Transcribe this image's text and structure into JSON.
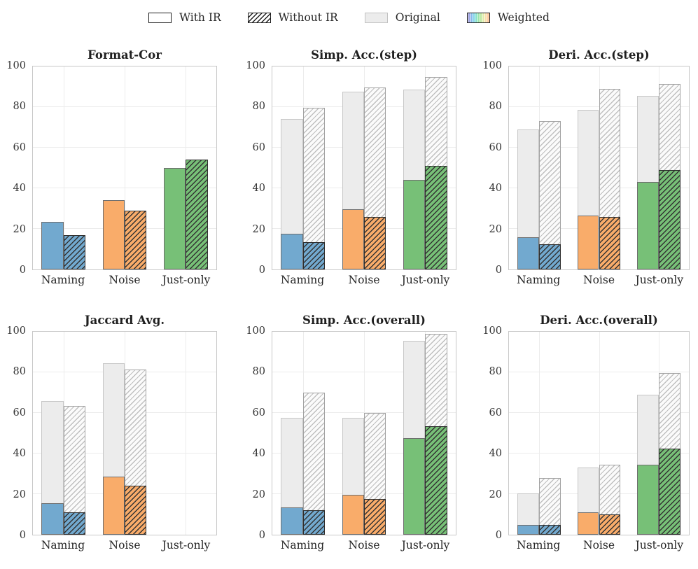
{
  "legend": {
    "items": [
      {
        "key": "with_ir",
        "label": "With IR",
        "swatch": "with-ir-swatch"
      },
      {
        "key": "without_ir",
        "label": "Without IR",
        "swatch": "without-ir-hatched-swatch"
      },
      {
        "key": "original",
        "label": "Original",
        "swatch": "original-gray-swatch"
      },
      {
        "key": "weighted",
        "label": "Weighted",
        "swatch": "weighted-rainbow-swatch"
      }
    ]
  },
  "colors": {
    "category_blue": "#72a9cf",
    "category_orange": "#f9ac6a",
    "category_green": "#77c077",
    "original_fill": "#ececec",
    "original_edge": "#c7c7c7",
    "original_hatch_line": "#bfbfbf",
    "weighted_solid_edge": "#6e6e6e",
    "weighted_hatch_edge": "#2f2f2f",
    "spine": "#c8c8c8",
    "gridline": "#ececec",
    "text": "#262626"
  },
  "chart_data": [
    {
      "type": "bar",
      "title": "Format-Cor",
      "categories": [
        "Naming",
        "Noise",
        "Just-only"
      ],
      "category_colors": [
        "#72a9cf",
        "#f9ac6a",
        "#77c077"
      ],
      "ylim": [
        0,
        100
      ],
      "yticks": [
        0,
        20,
        40,
        60,
        80,
        100
      ],
      "grid": true,
      "series": [
        {
          "key": "original_with_ir",
          "name": "Original With IR",
          "role": "original",
          "hatch": false,
          "values": [
            null,
            null,
            null
          ]
        },
        {
          "key": "original_without_ir",
          "name": "Original Without IR",
          "role": "original",
          "hatch": true,
          "values": [
            null,
            null,
            null
          ]
        },
        {
          "key": "weighted_with_ir",
          "name": "Weighted With IR",
          "role": "weighted",
          "hatch": false,
          "values": [
            23.5,
            34,
            50
          ]
        },
        {
          "key": "weighted_without_ir",
          "name": "Weighted Without IR",
          "role": "weighted",
          "hatch": true,
          "values": [
            17,
            29,
            54
          ]
        }
      ]
    },
    {
      "type": "bar",
      "title": "Simp. Acc.(step)",
      "categories": [
        "Naming",
        "Noise",
        "Just-only"
      ],
      "category_colors": [
        "#72a9cf",
        "#f9ac6a",
        "#77c077"
      ],
      "ylim": [
        0,
        100
      ],
      "yticks": [
        0,
        20,
        40,
        60,
        80,
        100
      ],
      "grid": true,
      "series": [
        {
          "key": "original_with_ir",
          "name": "Original With IR",
          "role": "original",
          "hatch": false,
          "values": [
            74,
            87.5,
            88.5
          ]
        },
        {
          "key": "original_without_ir",
          "name": "Original Without IR",
          "role": "original",
          "hatch": true,
          "values": [
            79.5,
            89.5,
            95
          ]
        },
        {
          "key": "weighted_with_ir",
          "name": "Weighted With IR",
          "role": "weighted",
          "hatch": false,
          "values": [
            17.5,
            29.5,
            44
          ]
        },
        {
          "key": "weighted_without_ir",
          "name": "Weighted Without IR",
          "role": "weighted",
          "hatch": true,
          "values": [
            13.5,
            26,
            51
          ]
        }
      ]
    },
    {
      "type": "bar",
      "title": "Deri. Acc.(step)",
      "categories": [
        "Naming",
        "Noise",
        "Just-only"
      ],
      "category_colors": [
        "#72a9cf",
        "#f9ac6a",
        "#77c077"
      ],
      "ylim": [
        0,
        100
      ],
      "yticks": [
        0,
        20,
        40,
        60,
        80,
        100
      ],
      "grid": true,
      "series": [
        {
          "key": "original_with_ir",
          "name": "Original With IR",
          "role": "original",
          "hatch": false,
          "values": [
            69,
            78.5,
            85.5
          ]
        },
        {
          "key": "original_without_ir",
          "name": "Original Without IR",
          "role": "original",
          "hatch": true,
          "values": [
            73,
            89,
            91.5
          ]
        },
        {
          "key": "weighted_with_ir",
          "name": "Weighted With IR",
          "role": "weighted",
          "hatch": false,
          "values": [
            16,
            26.5,
            43
          ]
        },
        {
          "key": "weighted_without_ir",
          "name": "Weighted Without IR",
          "role": "weighted",
          "hatch": true,
          "values": [
            12.5,
            26,
            49
          ]
        }
      ]
    },
    {
      "type": "bar",
      "title": "Jaccard Avg.",
      "categories": [
        "Naming",
        "Noise",
        "Just-only"
      ],
      "category_colors": [
        "#72a9cf",
        "#f9ac6a",
        "#77c077"
      ],
      "ylim": [
        0,
        100
      ],
      "yticks": [
        0,
        20,
        40,
        60,
        80,
        100
      ],
      "grid": true,
      "series": [
        {
          "key": "original_with_ir",
          "name": "Original With IR",
          "role": "original",
          "hatch": false,
          "values": [
            66,
            84.5,
            null
          ]
        },
        {
          "key": "original_without_ir",
          "name": "Original Without IR",
          "role": "original",
          "hatch": true,
          "values": [
            63.5,
            81.5,
            null
          ]
        },
        {
          "key": "weighted_with_ir",
          "name": "Weighted With IR",
          "role": "weighted",
          "hatch": false,
          "values": [
            15.5,
            28.5,
            null
          ]
        },
        {
          "key": "weighted_without_ir",
          "name": "Weighted Without IR",
          "role": "weighted",
          "hatch": true,
          "values": [
            11,
            24,
            null
          ]
        }
      ]
    },
    {
      "type": "bar",
      "title": "Simp. Acc.(overall)",
      "categories": [
        "Naming",
        "Noise",
        "Just-only"
      ],
      "category_colors": [
        "#72a9cf",
        "#f9ac6a",
        "#77c077"
      ],
      "ylim": [
        0,
        100
      ],
      "yticks": [
        0,
        20,
        40,
        60,
        80,
        100
      ],
      "grid": true,
      "series": [
        {
          "key": "original_with_ir",
          "name": "Original With IR",
          "role": "original",
          "hatch": false,
          "values": [
            57.5,
            57.5,
            95.5
          ]
        },
        {
          "key": "original_without_ir",
          "name": "Original Without IR",
          "role": "original",
          "hatch": true,
          "values": [
            70,
            60,
            99
          ]
        },
        {
          "key": "weighted_with_ir",
          "name": "Weighted With IR",
          "role": "weighted",
          "hatch": false,
          "values": [
            13.5,
            19.5,
            47.5
          ]
        },
        {
          "key": "weighted_without_ir",
          "name": "Weighted Without IR",
          "role": "weighted",
          "hatch": true,
          "values": [
            12,
            17.5,
            53.5
          ]
        }
      ]
    },
    {
      "type": "bar",
      "title": "Deri. Acc.(overall)",
      "categories": [
        "Naming",
        "Noise",
        "Just-only"
      ],
      "category_colors": [
        "#72a9cf",
        "#f9ac6a",
        "#77c077"
      ],
      "ylim": [
        0,
        100
      ],
      "yticks": [
        0,
        20,
        40,
        60,
        80,
        100
      ],
      "grid": true,
      "series": [
        {
          "key": "original_with_ir",
          "name": "Original With IR",
          "role": "original",
          "hatch": false,
          "values": [
            20.5,
            33,
            69
          ]
        },
        {
          "key": "original_without_ir",
          "name": "Original Without IR",
          "role": "original",
          "hatch": true,
          "values": [
            28,
            34.5,
            79.5
          ]
        },
        {
          "key": "weighted_with_ir",
          "name": "Weighted With IR",
          "role": "weighted",
          "hatch": false,
          "values": [
            5,
            11,
            34.5
          ]
        },
        {
          "key": "weighted_without_ir",
          "name": "Weighted Without IR",
          "role": "weighted",
          "hatch": true,
          "values": [
            5,
            10,
            42.5
          ]
        }
      ]
    }
  ]
}
